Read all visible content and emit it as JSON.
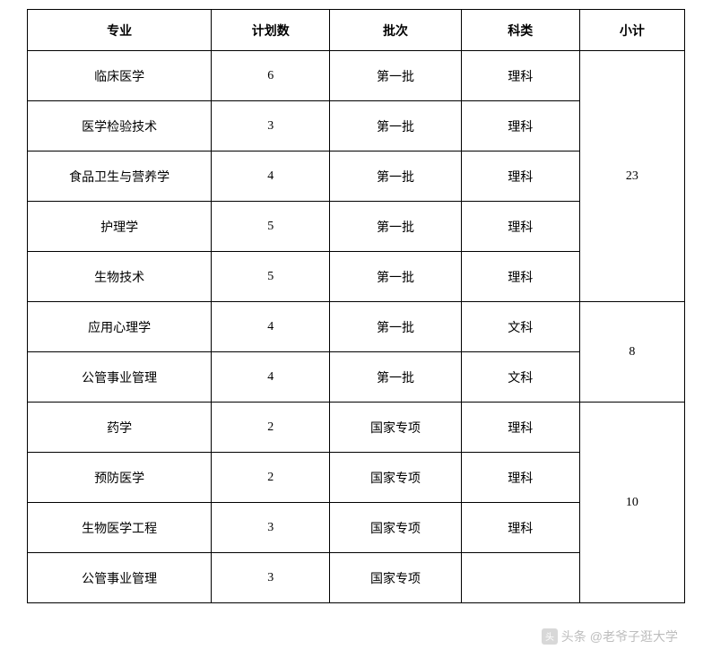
{
  "headers": {
    "major": "专业",
    "plan": "计划数",
    "batch": "批次",
    "subject": "科类",
    "subtotal": "小计"
  },
  "rows": [
    {
      "major": "临床医学",
      "plan": "6",
      "batch": "第一批",
      "subject": "理科"
    },
    {
      "major": "医学检验技术",
      "plan": "3",
      "batch": "第一批",
      "subject": "理科"
    },
    {
      "major": "食品卫生与营养学",
      "plan": "4",
      "batch": "第一批",
      "subject": "理科"
    },
    {
      "major": "护理学",
      "plan": "5",
      "batch": "第一批",
      "subject": "理科"
    },
    {
      "major": "生物技术",
      "plan": "5",
      "batch": "第一批",
      "subject": "理科"
    },
    {
      "major": "应用心理学",
      "plan": "4",
      "batch": "第一批",
      "subject": "文科"
    },
    {
      "major": "公管事业管理",
      "plan": "4",
      "batch": "第一批",
      "subject": "文科"
    },
    {
      "major": "药学",
      "plan": "2",
      "batch": "国家专项",
      "subject": "理科"
    },
    {
      "major": "预防医学",
      "plan": "2",
      "batch": "国家专项",
      "subject": "理科"
    },
    {
      "major": "生物医学工程",
      "plan": "3",
      "batch": "国家专项",
      "subject": "理科"
    },
    {
      "major": "公管事业管理",
      "plan": "3",
      "batch": "国家专项",
      "subject": ""
    }
  ],
  "subtotals": [
    {
      "startRow": 0,
      "span": 5,
      "value": "23"
    },
    {
      "startRow": 5,
      "span": 2,
      "value": "8"
    },
    {
      "startRow": 7,
      "span": 4,
      "value": "10"
    }
  ],
  "watermark": {
    "prefix": "头条",
    "handle": "@老爷子逛大学"
  }
}
